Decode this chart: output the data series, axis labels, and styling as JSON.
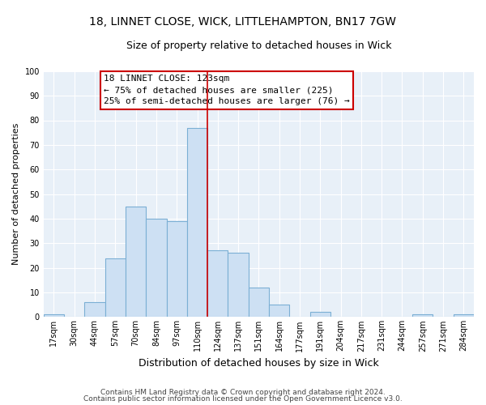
{
  "title": "18, LINNET CLOSE, WICK, LITTLEHAMPTON, BN17 7GW",
  "subtitle": "Size of property relative to detached houses in Wick",
  "xlabel": "Distribution of detached houses by size in Wick",
  "ylabel": "Number of detached properties",
  "bin_labels": [
    "17sqm",
    "30sqm",
    "44sqm",
    "57sqm",
    "70sqm",
    "84sqm",
    "97sqm",
    "110sqm",
    "124sqm",
    "137sqm",
    "151sqm",
    "164sqm",
    "177sqm",
    "191sqm",
    "204sqm",
    "217sqm",
    "231sqm",
    "244sqm",
    "257sqm",
    "271sqm",
    "284sqm"
  ],
  "bar_values": [
    1,
    0,
    6,
    24,
    45,
    40,
    39,
    77,
    27,
    26,
    12,
    5,
    0,
    2,
    0,
    0,
    0,
    0,
    1,
    0,
    1
  ],
  "bar_color": "#cde0f3",
  "bar_edge_color": "#7bafd4",
  "vline_x_idx": 7.5,
  "vline_color": "#cc0000",
  "annotation_title": "18 LINNET CLOSE: 123sqm",
  "annotation_line1": "← 75% of detached houses are smaller (225)",
  "annotation_line2": "25% of semi-detached houses are larger (76) →",
  "annotation_box_color": "#ffffff",
  "annotation_box_edge": "#cc0000",
  "ylim": [
    0,
    100
  ],
  "yticks": [
    0,
    10,
    20,
    30,
    40,
    50,
    60,
    70,
    80,
    90,
    100
  ],
  "footer1": "Contains HM Land Registry data © Crown copyright and database right 2024.",
  "footer2": "Contains public sector information licensed under the Open Government Licence v3.0.",
  "fig_background": "#ffffff",
  "plot_background": "#e8f0f8",
  "title_fontsize": 10,
  "subtitle_fontsize": 9,
  "xlabel_fontsize": 9,
  "ylabel_fontsize": 8,
  "tick_fontsize": 7,
  "annotation_fontsize": 8,
  "footer_fontsize": 6.5
}
